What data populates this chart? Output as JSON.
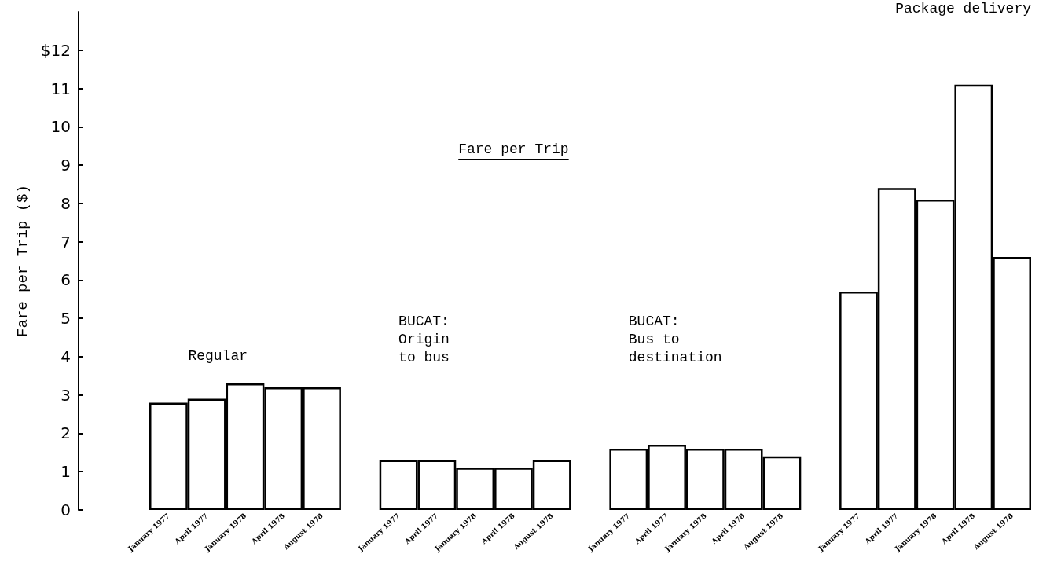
{
  "chart_data": {
    "type": "bar",
    "title": "Fare per Trip",
    "ylabel": "Fare per Trip ($)",
    "categories": [
      "January 1977",
      "April 1977",
      "January 1978",
      "April 1978",
      "August 1978",
      null,
      "January 1977",
      "April 1977",
      "January 1978",
      "April 1978",
      "August 1978",
      null,
      "January 1977",
      "April 1977",
      "January 1978",
      "April 1978",
      "August 1978",
      null,
      "January 1977",
      "April 1977",
      "January 1978",
      "April 1978",
      "August 1978"
    ],
    "values": [
      2.8,
      2.9,
      3.3,
      3.2,
      3.2,
      null,
      1.3,
      1.3,
      1.1,
      1.1,
      1.3,
      null,
      1.6,
      1.7,
      1.6,
      1.6,
      1.4,
      null,
      5.7,
      8.4,
      8.1,
      11.1,
      6.6
    ],
    "color": "#ffffff",
    "ylim": [
      0,
      13
    ],
    "yticks": [
      0,
      1,
      2,
      3,
      4,
      5,
      6,
      7,
      8,
      9,
      10,
      11,
      {
        "value": 12,
        "label": "$12"
      }
    ],
    "grid": false,
    "annotations": [
      "Regular",
      "BUCAT:\nOrigin\nto bus",
      "BUCAT:\nBus to\ndestination",
      "Package delivery"
    ]
  }
}
